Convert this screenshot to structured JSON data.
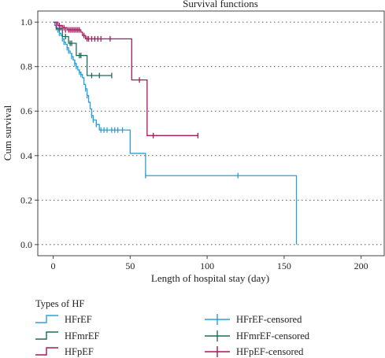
{
  "chart_data": {
    "type": "line",
    "subtype": "kaplan-meier",
    "title": "Survival functions",
    "xlabel": "Length of hospital stay (day)",
    "ylabel": "Cum survival",
    "xlim": [
      -10,
      215
    ],
    "ylim": [
      -0.05,
      1.05
    ],
    "x_ticks": [
      0,
      50,
      100,
      150,
      200
    ],
    "y_ticks": [
      0.0,
      0.2,
      0.4,
      0.6,
      0.8,
      1.0
    ],
    "y_tick_labels": [
      "0.0",
      "0.2",
      "0.4",
      "0.6",
      "0.8",
      "1.0"
    ],
    "grid": "horizontal-dotted",
    "legend_title": "Types of HF",
    "legend_position": "bottom",
    "series": [
      {
        "name": "HFrEF",
        "censored_name": "HFrEF-censored",
        "color": "#2a9fd8",
        "steps": [
          [
            0,
            1.0
          ],
          [
            1,
            0.985
          ],
          [
            2,
            0.975
          ],
          [
            3,
            0.965
          ],
          [
            4,
            0.95
          ],
          [
            5,
            0.94
          ],
          [
            6,
            0.925
          ],
          [
            7,
            0.91
          ],
          [
            8,
            0.9
          ],
          [
            9,
            0.885
          ],
          [
            10,
            0.87
          ],
          [
            11,
            0.86
          ],
          [
            12,
            0.845
          ],
          [
            13,
            0.83
          ],
          [
            14,
            0.815
          ],
          [
            15,
            0.8
          ],
          [
            16,
            0.785
          ],
          [
            17,
            0.775
          ],
          [
            18,
            0.765
          ],
          [
            19,
            0.75
          ],
          [
            20,
            0.72
          ],
          [
            21,
            0.7
          ],
          [
            22,
            0.67
          ],
          [
            23,
            0.64
          ],
          [
            24,
            0.61
          ],
          [
            25,
            0.58
          ],
          [
            26,
            0.56
          ],
          [
            28,
            0.54
          ],
          [
            30,
            0.515
          ],
          [
            50,
            0.41
          ],
          [
            60,
            0.31
          ],
          [
            158,
            0.0
          ]
        ],
        "censored": [
          [
            2,
            0.975
          ],
          [
            3,
            0.965
          ],
          [
            4,
            0.95
          ],
          [
            6,
            0.925
          ],
          [
            7,
            0.91
          ],
          [
            9,
            0.885
          ],
          [
            10,
            0.87
          ],
          [
            12,
            0.845
          ],
          [
            14,
            0.815
          ],
          [
            15,
            0.8
          ],
          [
            17,
            0.775
          ],
          [
            18,
            0.765
          ],
          [
            21,
            0.7
          ],
          [
            22,
            0.67
          ],
          [
            25,
            0.58
          ],
          [
            26,
            0.56
          ],
          [
            28,
            0.54
          ],
          [
            31,
            0.515
          ],
          [
            33,
            0.515
          ],
          [
            35,
            0.515
          ],
          [
            38,
            0.515
          ],
          [
            40,
            0.515
          ],
          [
            42,
            0.515
          ],
          [
            45,
            0.515
          ],
          [
            60,
            0.31
          ],
          [
            120,
            0.31
          ]
        ]
      },
      {
        "name": "HFmrEF",
        "censored_name": "HFmrEF-censored",
        "color": "#1b6b5a",
        "steps": [
          [
            0,
            1.0
          ],
          [
            2,
            0.97
          ],
          [
            6,
            0.935
          ],
          [
            10,
            0.905
          ],
          [
            15,
            0.85
          ],
          [
            22,
            0.76
          ],
          [
            38,
            0.76
          ]
        ],
        "censored": [
          [
            4,
            0.97
          ],
          [
            8,
            0.935
          ],
          [
            11,
            0.905
          ],
          [
            12,
            0.905
          ],
          [
            17,
            0.85
          ],
          [
            18,
            0.85
          ],
          [
            25,
            0.76
          ],
          [
            30,
            0.76
          ],
          [
            38,
            0.76
          ]
        ]
      },
      {
        "name": "HFpEF",
        "censored_name": "HFpEF-censored",
        "color": "#a3195b",
        "steps": [
          [
            0,
            1.0
          ],
          [
            3,
            0.985
          ],
          [
            6,
            0.975
          ],
          [
            9,
            0.965
          ],
          [
            18,
            0.955
          ],
          [
            19,
            0.94
          ],
          [
            21,
            0.925
          ],
          [
            51,
            0.74
          ],
          [
            61,
            0.49
          ],
          [
            94,
            0.49
          ]
        ],
        "censored": [
          [
            2,
            0.985
          ],
          [
            4,
            0.985
          ],
          [
            5,
            0.975
          ],
          [
            7,
            0.975
          ],
          [
            8,
            0.965
          ],
          [
            10,
            0.965
          ],
          [
            11,
            0.965
          ],
          [
            12,
            0.965
          ],
          [
            13,
            0.965
          ],
          [
            14,
            0.965
          ],
          [
            15,
            0.965
          ],
          [
            16,
            0.965
          ],
          [
            17,
            0.965
          ],
          [
            20,
            0.94
          ],
          [
            22,
            0.925
          ],
          [
            23,
            0.925
          ],
          [
            25,
            0.925
          ],
          [
            27,
            0.925
          ],
          [
            29,
            0.925
          ],
          [
            31,
            0.925
          ],
          [
            37,
            0.925
          ],
          [
            56,
            0.74
          ],
          [
            65,
            0.49
          ],
          [
            94,
            0.49
          ]
        ]
      }
    ]
  }
}
